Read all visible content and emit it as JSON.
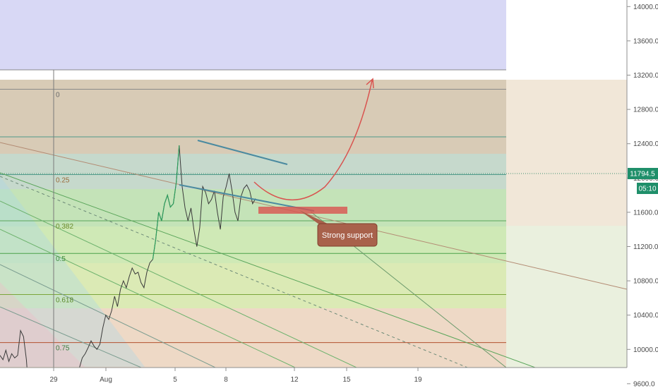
{
  "chart_data": {
    "type": "line",
    "title": "",
    "xlabel": "",
    "ylabel": "",
    "x_ticks": [
      "29",
      "Aug",
      "5",
      "8",
      "12",
      "15",
      "19"
    ],
    "y_ticks": [
      "14000.0",
      "13600.0",
      "13200.0",
      "12800.0",
      "12400.0",
      "12000.0",
      "11600.0",
      "11200.0",
      "10800.0",
      "10400.0",
      "10000.0",
      "9600.0"
    ],
    "ylim": [
      9300,
      14050
    ],
    "grid": false,
    "current_price": "11794.5",
    "countdown": "05:10",
    "fib_levels": [
      {
        "label": "0",
        "price": 13035
      },
      {
        "label": "0.25",
        "price": 12040
      },
      {
        "label": "0.382",
        "price": 11500
      },
      {
        "label": "0.5",
        "price": 11120
      },
      {
        "label": "0.618",
        "price": 10640
      },
      {
        "label": "0.75",
        "price": 10080
      }
    ],
    "annotations": [
      {
        "type": "callout",
        "text": "Strong support"
      }
    ],
    "series": [
      {
        "values": [
          9930,
          9880,
          9990,
          9860,
          9950,
          9900,
          9930,
          10220,
          10150,
          9880,
          9390,
          9460,
          9390,
          9420,
          9480,
          9520,
          9460,
          9500,
          9550,
          9470,
          9580,
          9560,
          9540,
          9600,
          9630,
          9580,
          9700,
          9780,
          9900,
          9950,
          10020,
          10100,
          10040,
          10000,
          10060,
          10250,
          10400,
          10350,
          10450,
          10620,
          10500,
          10700,
          10800,
          10720,
          10850,
          10950,
          10880,
          10900,
          10780,
          10720,
          10900,
          11010,
          11050,
          11280,
          11600,
          11500,
          11700,
          11800,
          11660,
          11700,
          11950,
          12380,
          11900,
          11650,
          11500,
          11650,
          11400,
          11200,
          11420,
          11900,
          11830,
          11700,
          11750,
          11850,
          11600,
          11400,
          11780,
          11900,
          12050,
          11850,
          11600,
          11500,
          11780,
          11880,
          11920,
          11850,
          11700,
          11760
        ]
      }
    ]
  }
}
